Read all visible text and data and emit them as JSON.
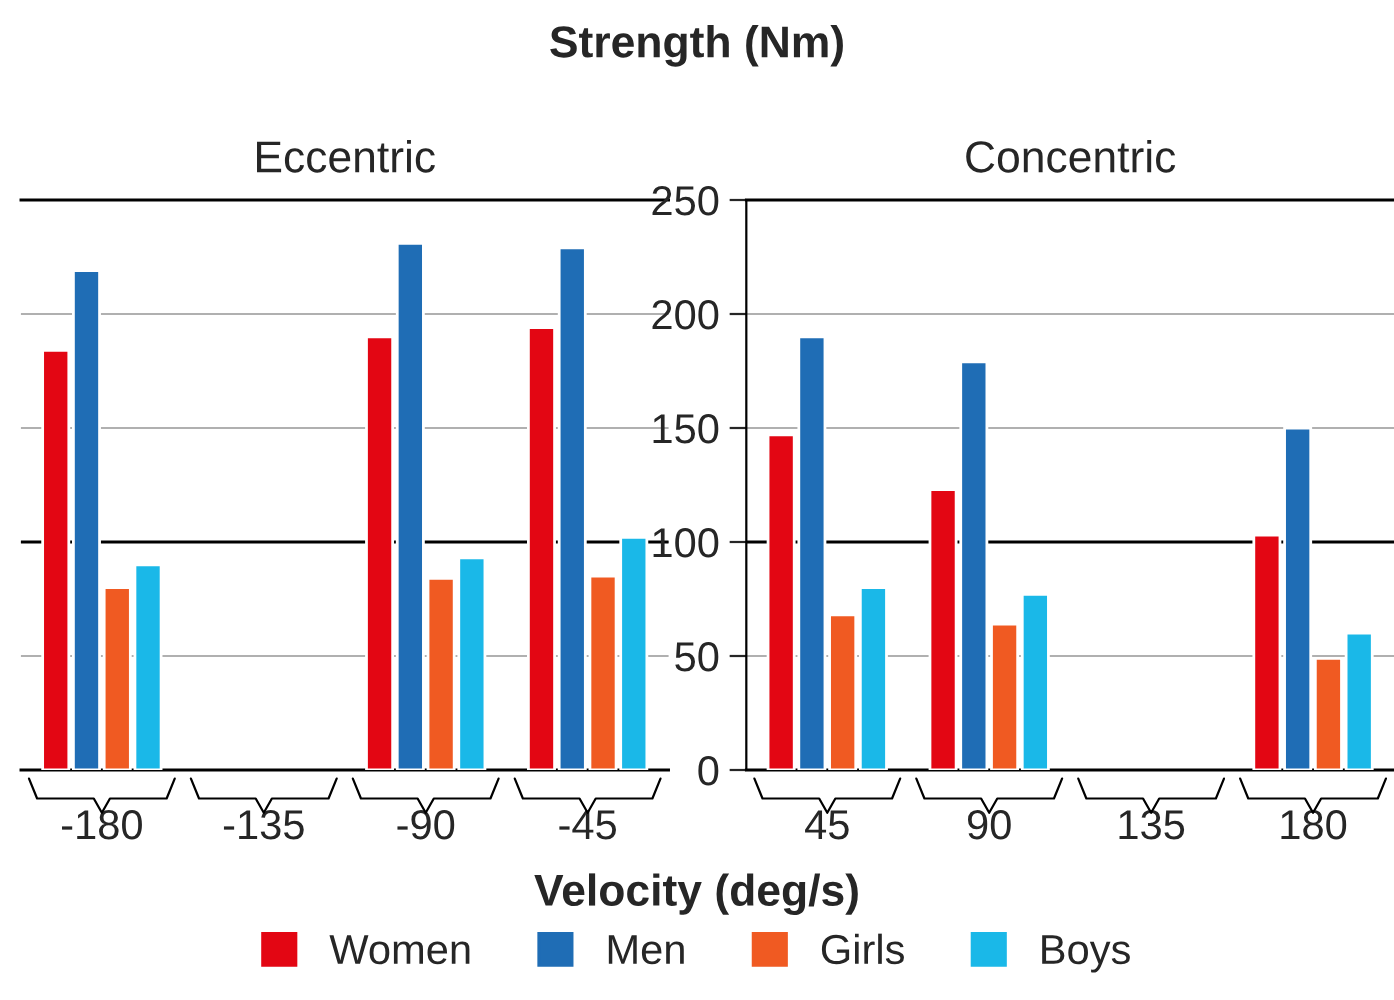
{
  "chart_data": [
    {
      "type": "bar",
      "title": "Strength (Nm)",
      "subtitle": "Eccentric",
      "xlabel": "Velocity (deg/s)",
      "categories": [
        "-180",
        "-135",
        "-90",
        "-45"
      ],
      "series": [
        {
          "name": "Women",
          "color": "#e30613",
          "values": [
            184,
            null,
            190,
            194
          ]
        },
        {
          "name": "Men",
          "color": "#1f6db5",
          "values": [
            219,
            null,
            231,
            229
          ]
        },
        {
          "name": "Girls",
          "color": "#f05a22",
          "values": [
            80,
            null,
            84,
            85
          ]
        },
        {
          "name": "Boys",
          "color": "#1ab8e8",
          "values": [
            90,
            null,
            93,
            102
          ]
        }
      ],
      "ylim": [
        0,
        250
      ],
      "yticks": [
        0,
        50,
        100,
        150,
        200,
        250
      ],
      "grid": "y",
      "tick_labels": "x",
      "legend": "bottom",
      "ref_lines": [
        {
          "axis": "y",
          "value": 100,
          "color": "#000000"
        }
      ]
    },
    {
      "type": "bar",
      "subtitle": "Concentric",
      "categories": [
        "45",
        "90",
        "135",
        "180"
      ],
      "series": [
        {
          "name": "Women",
          "color": "#e30613",
          "values": [
            147,
            123,
            null,
            103
          ]
        },
        {
          "name": "Men",
          "color": "#1f6db5",
          "values": [
            190,
            179,
            null,
            150
          ]
        },
        {
          "name": "Girls",
          "color": "#f05a22",
          "values": [
            68,
            64,
            null,
            49
          ]
        },
        {
          "name": "Boys",
          "color": "#1ab8e8",
          "values": [
            80,
            77,
            null,
            60
          ]
        }
      ],
      "ylim": [
        0,
        250
      ],
      "yticks": [
        0,
        50,
        100,
        150,
        200,
        250
      ],
      "grid": "y",
      "legend": "bottom",
      "ref_lines": [
        {
          "axis": "y",
          "value": 100,
          "color": "#000000"
        }
      ]
    }
  ]
}
